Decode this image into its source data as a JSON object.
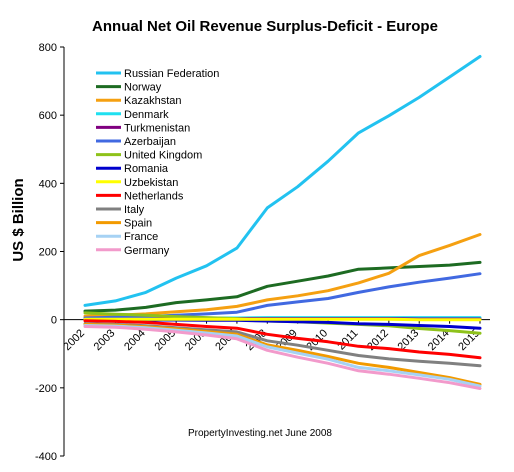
{
  "chart_data": {
    "type": "line",
    "title": "Annual Net Oil Revenue Surplus-Deficit  - Europe",
    "xlabel": "",
    "ylabel": "US $ Billion",
    "note": "PropertyInvesting.net    June 2008",
    "x": [
      "2002",
      "2003",
      "2004",
      "2005",
      "2006",
      "2007",
      "2008",
      "2009",
      "2010",
      "2011",
      "2012",
      "2013",
      "2014",
      "2015"
    ],
    "ylim": [
      -400,
      800
    ],
    "yticks": [
      -400,
      -200,
      0,
      200,
      400,
      600,
      800
    ],
    "grid": false,
    "legend_position": "top-left",
    "series": [
      {
        "name": "Russian Federation",
        "color": "#22c2f0",
        "values": [
          42,
          55,
          80,
          122,
          158,
          210,
          328,
          390,
          465,
          548,
          598,
          652,
          712,
          772
        ]
      },
      {
        "name": "Norway",
        "color": "#1d6b22",
        "values": [
          25,
          28,
          36,
          50,
          58,
          67,
          98,
          113,
          128,
          148,
          152,
          156,
          160,
          168
        ]
      },
      {
        "name": "Kazakhstan",
        "color": "#f5a011",
        "values": [
          10,
          13,
          17,
          23,
          29,
          39,
          58,
          70,
          85,
          108,
          136,
          188,
          218,
          250
        ]
      },
      {
        "name": "Denmark",
        "color": "#1fe0f0",
        "values": [
          3,
          3,
          4,
          4,
          5,
          5,
          6,
          6,
          6,
          6,
          6,
          6,
          6,
          6
        ]
      },
      {
        "name": "Turkmenistan",
        "color": "#800080",
        "values": [
          3,
          3,
          3,
          3,
          3,
          3,
          3,
          3,
          3,
          3,
          3,
          2,
          2,
          2
        ]
      },
      {
        "name": "Azerbaijan",
        "color": "#4169e1",
        "values": [
          5,
          7,
          9,
          13,
          17,
          22,
          42,
          52,
          62,
          80,
          96,
          110,
          122,
          135
        ]
      },
      {
        "name": "United Kingdom",
        "color": "#8ec21a",
        "values": [
          20,
          16,
          13,
          9,
          6,
          3,
          -4,
          -6,
          -10,
          -14,
          -18,
          -26,
          -32,
          -40
        ]
      },
      {
        "name": "Romania",
        "color": "#0000cd",
        "values": [
          0,
          0,
          -1,
          -1,
          -2,
          -2,
          -4,
          -6,
          -8,
          -12,
          -14,
          -17,
          -20,
          -25
        ]
      },
      {
        "name": "Uzbekistan",
        "color": "#ffff00",
        "values": [
          1,
          1,
          1,
          1,
          1,
          1,
          1,
          1,
          1,
          1,
          1,
          0,
          0,
          0
        ]
      },
      {
        "name": "Netherlands",
        "color": "#ff0000",
        "values": [
          -3,
          -5,
          -8,
          -14,
          -20,
          -25,
          -43,
          -55,
          -65,
          -78,
          -85,
          -95,
          -102,
          -112
        ]
      },
      {
        "name": "Italy",
        "color": "#808080",
        "values": [
          -12,
          -14,
          -18,
          -24,
          -30,
          -36,
          -62,
          -75,
          -90,
          -105,
          -115,
          -122,
          -128,
          -135
        ]
      },
      {
        "name": "Spain",
        "color": "#f29a00",
        "values": [
          -14,
          -16,
          -21,
          -27,
          -35,
          -43,
          -74,
          -90,
          -108,
          -128,
          -140,
          -155,
          -170,
          -190
        ]
      },
      {
        "name": "France",
        "color": "#a6d2f4",
        "values": [
          -17,
          -19,
          -24,
          -31,
          -39,
          -48,
          -80,
          -98,
          -116,
          -140,
          -150,
          -162,
          -175,
          -195
        ]
      },
      {
        "name": "Germany",
        "color": "#f29acb",
        "values": [
          -20,
          -22,
          -28,
          -36,
          -45,
          -56,
          -90,
          -110,
          -128,
          -150,
          -160,
          -172,
          -185,
          -202
        ]
      }
    ]
  }
}
